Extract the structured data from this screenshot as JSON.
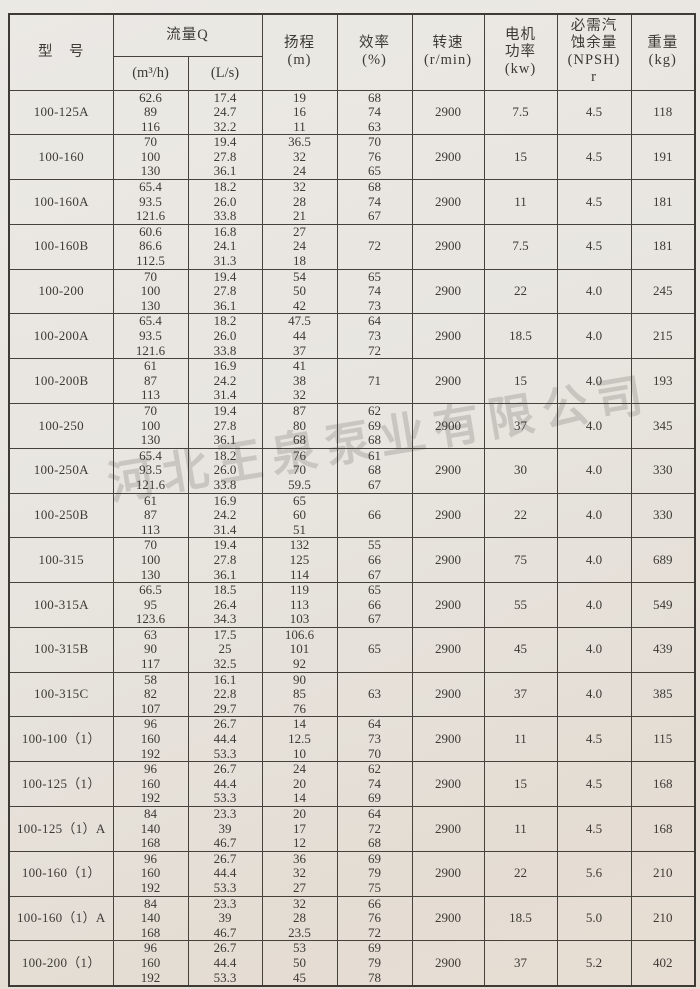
{
  "watermark": "河北王泉泵业有限公司",
  "table": {
    "headers": {
      "model": "型　号",
      "flow_group": "流量Q",
      "flow_m3h": "(m³/h)",
      "flow_ls": "(L/s)",
      "head": "扬程\n(m)",
      "efficiency": "效率\n(%)",
      "speed": "转速\n(r/min)",
      "power": "电机\n功率\n(kw)",
      "npsh": "必需汽\n蚀余量\n(NPSH)\nr",
      "weight": "重量\n(kg)"
    },
    "col_keys": [
      "model",
      "flow-m3h",
      "flow-ls",
      "head",
      "efficiency",
      "speed",
      "power",
      "npsh",
      "weight"
    ],
    "rows": [
      {
        "model": "100-125A",
        "m3h": "62.6\n89\n116",
        "ls": "17.4\n24.7\n32.2",
        "head": "19\n16\n11",
        "eff": "68\n74\n63",
        "speed": "2900",
        "power": "7.5",
        "npsh": "4.5",
        "weight": "118"
      },
      {
        "model": "100-160",
        "m3h": "70\n100\n130",
        "ls": "19.4\n27.8\n36.1",
        "head": "36.5\n32\n24",
        "eff": "70\n76\n65",
        "speed": "2900",
        "power": "15",
        "npsh": "4.5",
        "weight": "191"
      },
      {
        "model": "100-160A",
        "m3h": "65.4\n93.5\n121.6",
        "ls": "18.2\n26.0\n33.8",
        "head": "32\n28\n21",
        "eff": "68\n74\n67",
        "speed": "2900",
        "power": "11",
        "npsh": "4.5",
        "weight": "181"
      },
      {
        "model": "100-160B",
        "m3h": "60.6\n86.6\n112.5",
        "ls": "16.8\n24.1\n31.3",
        "head": "27\n24\n18",
        "eff": "72",
        "speed": "2900",
        "power": "7.5",
        "npsh": "4.5",
        "weight": "181"
      },
      {
        "model": "100-200",
        "m3h": "70\n100\n130",
        "ls": "19.4\n27.8\n36.1",
        "head": "54\n50\n42",
        "eff": "65\n74\n73",
        "speed": "2900",
        "power": "22",
        "npsh": "4.0",
        "weight": "245"
      },
      {
        "model": "100-200A",
        "m3h": "65.4\n93.5\n121.6",
        "ls": "18.2\n26.0\n33.8",
        "head": "47.5\n44\n37",
        "eff": "64\n73\n72",
        "speed": "2900",
        "power": "18.5",
        "npsh": "4.0",
        "weight": "215"
      },
      {
        "model": "100-200B",
        "m3h": "61\n87\n113",
        "ls": "16.9\n24.2\n31.4",
        "head": "41\n38\n32",
        "eff": "71",
        "speed": "2900",
        "power": "15",
        "npsh": "4.0",
        "weight": "193"
      },
      {
        "model": "100-250",
        "m3h": "70\n100\n130",
        "ls": "19.4\n27.8\n36.1",
        "head": "87\n80\n68",
        "eff": "62\n69\n68",
        "speed": "2900",
        "power": "37",
        "npsh": "4.0",
        "weight": "345"
      },
      {
        "model": "100-250A",
        "m3h": "65.4\n93.5\n121.6",
        "ls": "18.2\n26.0\n33.8",
        "head": "76\n70\n59.5",
        "eff": "61\n68\n67",
        "speed": "2900",
        "power": "30",
        "npsh": "4.0",
        "weight": "330"
      },
      {
        "model": "100-250B",
        "m3h": "61\n87\n113",
        "ls": "16.9\n24.2\n31.4",
        "head": "65\n60\n51",
        "eff": "66",
        "speed": "2900",
        "power": "22",
        "npsh": "4.0",
        "weight": "330"
      },
      {
        "model": "100-315",
        "m3h": "70\n100\n130",
        "ls": "19.4\n27.8\n36.1",
        "head": "132\n125\n114",
        "eff": "55\n66\n67",
        "speed": "2900",
        "power": "75",
        "npsh": "4.0",
        "weight": "689"
      },
      {
        "model": "100-315A",
        "m3h": "66.5\n95\n123.6",
        "ls": "18.5\n26.4\n34.3",
        "head": "119\n113\n103",
        "eff": "65\n66\n67",
        "speed": "2900",
        "power": "55",
        "npsh": "4.0",
        "weight": "549"
      },
      {
        "model": "100-315B",
        "m3h": "63\n90\n117",
        "ls": "17.5\n25\n32.5",
        "head": "106.6\n101\n92",
        "eff": "65",
        "speed": "2900",
        "power": "45",
        "npsh": "4.0",
        "weight": "439"
      },
      {
        "model": "100-315C",
        "m3h": "58\n82\n107",
        "ls": "16.1\n22.8\n29.7",
        "head": "90\n85\n76",
        "eff": "63",
        "speed": "2900",
        "power": "37",
        "npsh": "4.0",
        "weight": "385"
      },
      {
        "model": "100-100（1）",
        "m3h": "96\n160\n192",
        "ls": "26.7\n44.4\n53.3",
        "head": "14\n12.5\n10",
        "eff": "64\n73\n70",
        "speed": "2900",
        "power": "11",
        "npsh": "4.5",
        "weight": "115"
      },
      {
        "model": "100-125（1）",
        "m3h": "96\n160\n192",
        "ls": "26.7\n44.4\n53.3",
        "head": "24\n20\n14",
        "eff": "62\n74\n69",
        "speed": "2900",
        "power": "15",
        "npsh": "4.5",
        "weight": "168"
      },
      {
        "model": "100-125（1）A",
        "m3h": "84\n140\n168",
        "ls": "23.3\n39\n46.7",
        "head": "20\n17\n12",
        "eff": "64\n72\n68",
        "speed": "2900",
        "power": "11",
        "npsh": "4.5",
        "weight": "168"
      },
      {
        "model": "100-160（1）",
        "m3h": "96\n160\n192",
        "ls": "26.7\n44.4\n53.3",
        "head": "36\n32\n27",
        "eff": "69\n79\n75",
        "speed": "2900",
        "power": "22",
        "npsh": "5.6",
        "weight": "210"
      },
      {
        "model": "100-160（1）A",
        "m3h": "84\n140\n168",
        "ls": "23.3\n39\n46.7",
        "head": "32\n28\n23.5",
        "eff": "66\n76\n72",
        "speed": "2900",
        "power": "18.5",
        "npsh": "5.0",
        "weight": "210"
      },
      {
        "model": "100-200（1）",
        "m3h": "96\n160\n192",
        "ls": "26.7\n44.4\n53.3",
        "head": "53\n50\n45",
        "eff": "69\n79\n78",
        "speed": "2900",
        "power": "37",
        "npsh": "5.2",
        "weight": "402"
      }
    ]
  }
}
